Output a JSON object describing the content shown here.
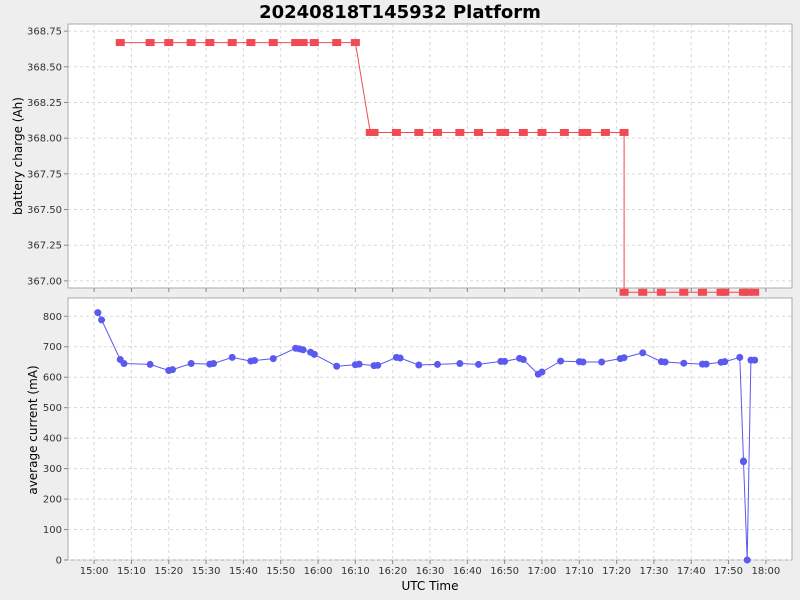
{
  "chart_data": {
    "type": "line",
    "title": "20240818T145932 Platform",
    "xlabel": "UTC Time",
    "x_ticks": [
      "15:00",
      "15:10",
      "15:20",
      "15:30",
      "15:40",
      "15:50",
      "16:00",
      "16:10",
      "16:20",
      "16:30",
      "16:40",
      "16:50",
      "17:00",
      "17:10",
      "17:20",
      "17:30",
      "17:40",
      "17:50",
      "18:00"
    ],
    "x_range": [
      "14:53",
      "18:07"
    ],
    "grid": true,
    "panels": [
      {
        "ylabel": "battery charge (Ah)",
        "ylim": [
          366.95,
          368.8
        ],
        "y_ticks": [
          "367.00",
          "367.25",
          "367.50",
          "367.75",
          "368.00",
          "368.25",
          "368.50",
          "368.75"
        ],
        "y_tick_values": [
          367.0,
          367.25,
          367.5,
          367.75,
          368.0,
          368.25,
          368.5,
          368.75
        ],
        "series": [
          {
            "color": "#f04a54",
            "marker": "square",
            "x": [
              "15:07",
              "15:15",
              "15:20",
              "15:26",
              "15:31",
              "15:37",
              "15:42",
              "15:48",
              "15:54",
              "15:56",
              "15:59",
              "16:05",
              "16:10",
              "16:14",
              "16:15",
              "16:21",
              "16:27",
              "16:32",
              "16:38",
              "16:43",
              "16:49",
              "16:50",
              "16:55",
              "17:00",
              "17:06",
              "17:11",
              "17:12",
              "17:17",
              "17:22",
              "17:22",
              "17:27",
              "17:32",
              "17:38",
              "17:43",
              "17:48",
              "17:49",
              "17:54",
              "17:55",
              "17:57"
            ],
            "y": [
              368.67,
              368.67,
              368.67,
              368.67,
              368.67,
              368.67,
              368.67,
              368.67,
              368.67,
              368.67,
              368.67,
              368.67,
              368.67,
              368.04,
              368.04,
              368.04,
              368.04,
              368.04,
              368.04,
              368.04,
              368.04,
              368.04,
              368.04,
              368.04,
              368.04,
              368.04,
              368.04,
              368.04,
              368.04,
              366.92,
              366.92,
              366.92,
              366.92,
              366.92,
              366.92,
              366.92,
              366.92,
              366.92,
              366.92
            ]
          }
        ]
      },
      {
        "ylabel": "average current (mA)",
        "ylim": [
          0,
          860
        ],
        "y_ticks": [
          "0",
          "100",
          "200",
          "300",
          "400",
          "500",
          "600",
          "700",
          "800"
        ],
        "y_tick_values": [
          0,
          100,
          200,
          300,
          400,
          500,
          600,
          700,
          800
        ],
        "series": [
          {
            "color": "#5a5af0",
            "marker": "circle",
            "x": [
              "15:01",
              "15:02",
              "15:07",
              "15:08",
              "15:15",
              "15:20",
              "15:21",
              "15:26",
              "15:31",
              "15:32",
              "15:37",
              "15:42",
              "15:43",
              "15:48",
              "15:54",
              "15:55",
              "15:56",
              "15:58",
              "15:59",
              "16:05",
              "16:10",
              "16:11",
              "16:15",
              "16:16",
              "16:21",
              "16:22",
              "16:27",
              "16:32",
              "16:38",
              "16:43",
              "16:49",
              "16:50",
              "16:54",
              "16:55",
              "16:59",
              "17:00",
              "17:05",
              "17:10",
              "17:11",
              "17:16",
              "17:21",
              "17:22",
              "17:27",
              "17:32",
              "17:33",
              "17:38",
              "17:43",
              "17:44",
              "17:48",
              "17:49",
              "17:53",
              "17:54",
              "17:54",
              "17:55",
              "17:56",
              "17:57"
            ],
            "y": [
              812,
              788,
              658,
              645,
              642,
              622,
              625,
              645,
              643,
              645,
              665,
              653,
              655,
              661,
              695,
              693,
              690,
              682,
              675,
              636,
              641,
              643,
              638,
              639,
              665,
              663,
              640,
              642,
              645,
              642,
              652,
              652,
              662,
              658,
              610,
              617,
              653,
              651,
              650,
              650,
              661,
              664,
              680,
              651,
              650,
              646,
              643,
              643,
              649,
              651,
              665,
              325,
              323,
              0,
              656,
              656
            ]
          }
        ]
      }
    ]
  }
}
